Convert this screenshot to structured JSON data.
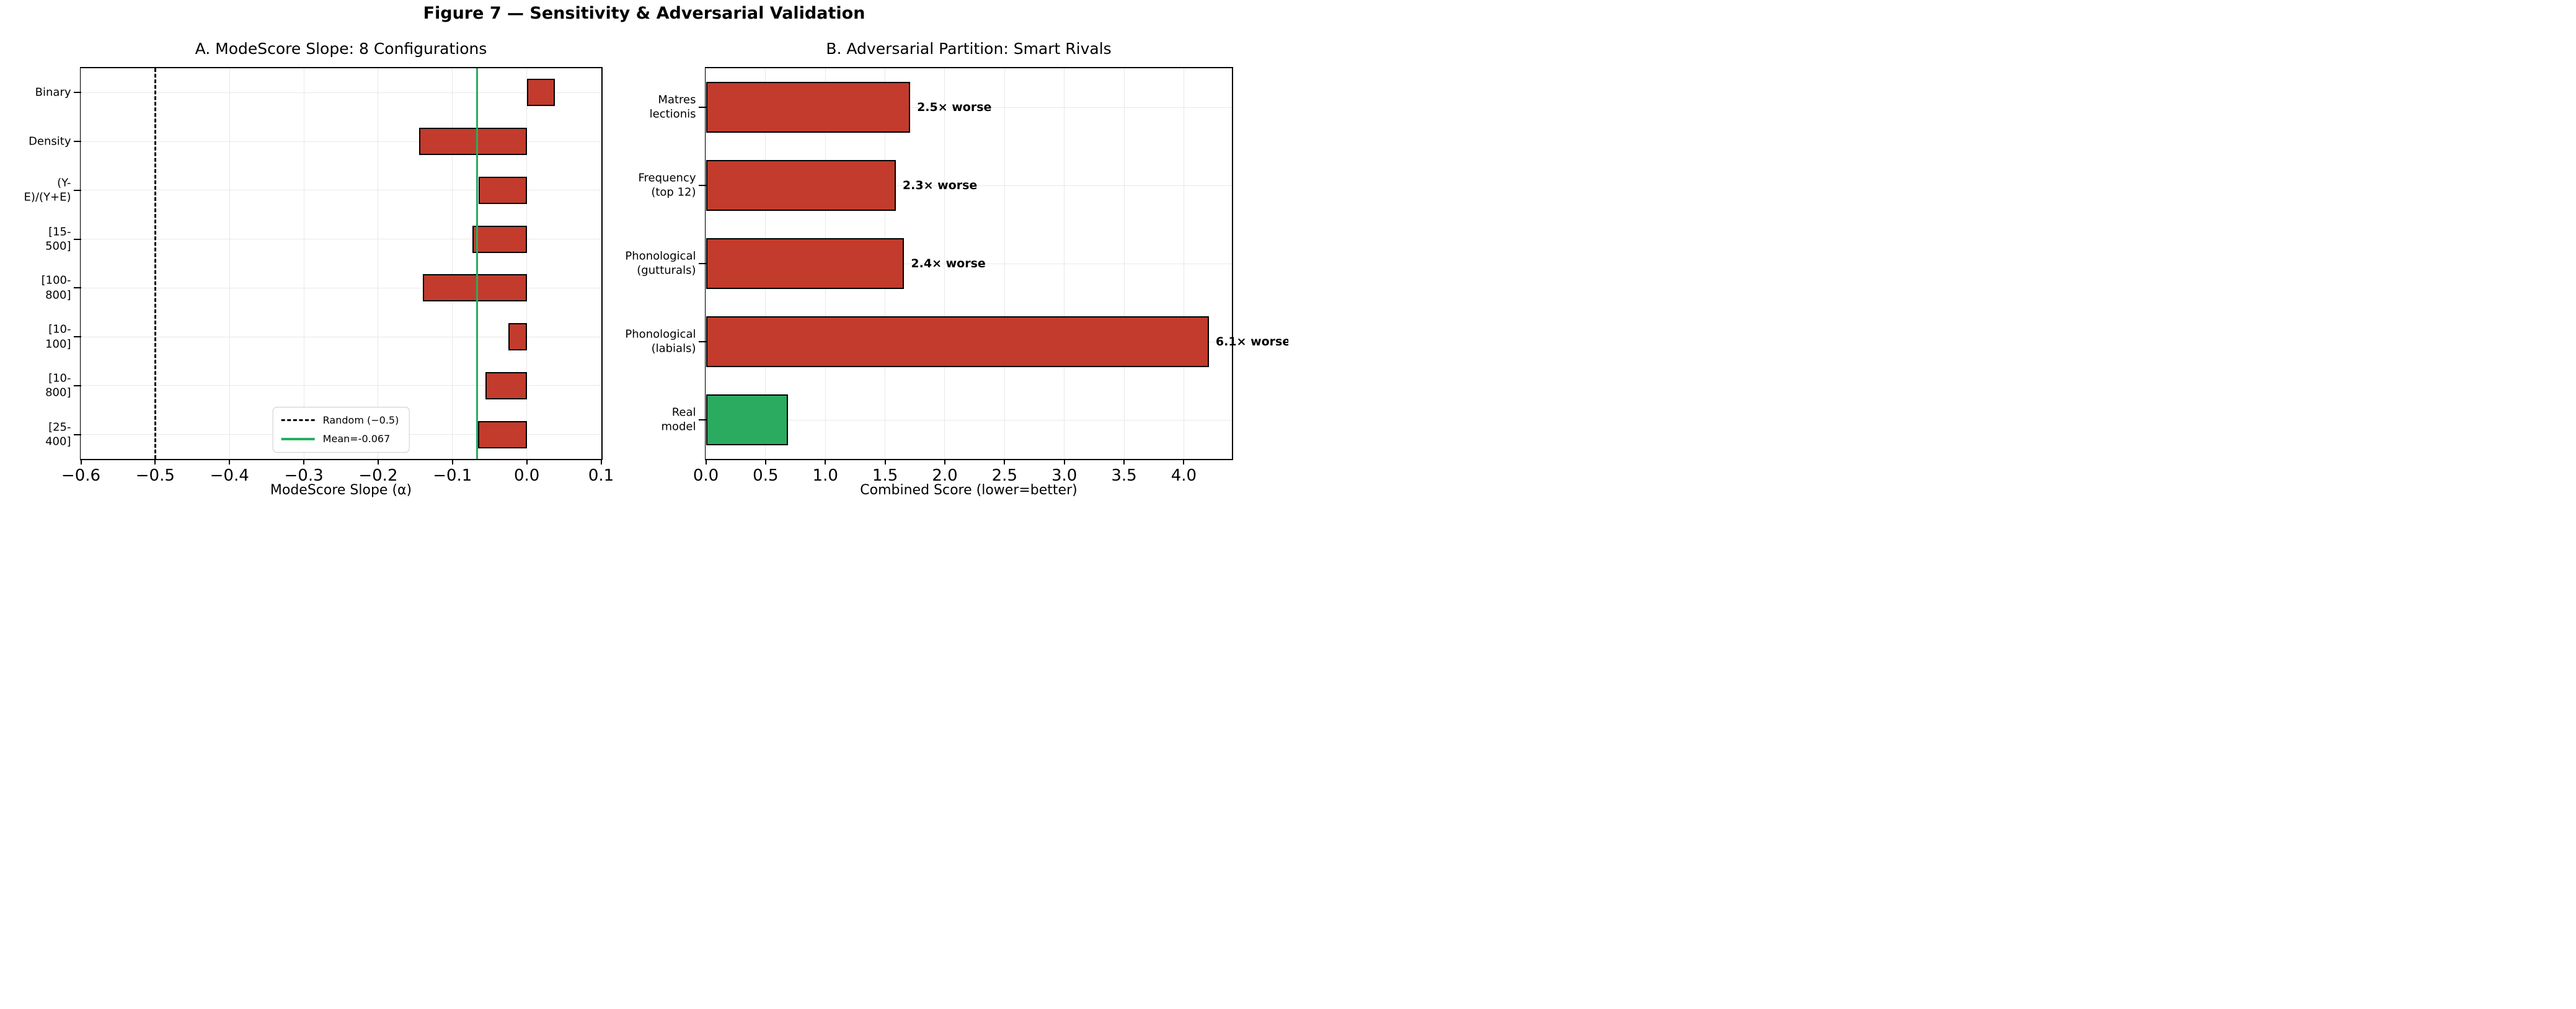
{
  "figure_title": "Figure 7 — Sensitivity & Adversarial Validation",
  "colors": {
    "bar_red": "#c23b2c",
    "bar_green": "#2aab60",
    "mean_line_green": "#27ae60",
    "random_line_black": "#000000",
    "grid": "#e8e8e8",
    "spine": "#000000"
  },
  "chart_data": [
    {
      "type": "bar",
      "orientation": "horizontal",
      "title": "A. ModeScore Slope: 8 Configurations",
      "xlabel": "ModeScore Slope (α)",
      "categories": [
        "Binary",
        "Density",
        "(Y-E)/(Y+E)",
        "[15-500]",
        "[100-800]",
        "[10-100]",
        "[10-800]",
        "[25-400]"
      ],
      "values": [
        0.038,
        -0.145,
        -0.065,
        -0.073,
        -0.14,
        -0.025,
        -0.056,
        -0.066
      ],
      "bar_color": "#c23b2c",
      "xlim": [
        -0.6,
        0.1
      ],
      "xticks": [
        -0.6,
        -0.5,
        -0.4,
        -0.3,
        -0.2,
        -0.1,
        0.0,
        0.1
      ],
      "xtick_labels": [
        "−0.6",
        "−0.5",
        "−0.4",
        "−0.3",
        "−0.2",
        "−0.1",
        "0.0",
        "0.1"
      ],
      "grid": true,
      "legend_position": "lower center",
      "reference_lines": [
        {
          "label": "Random (−0.5)",
          "x": -0.5,
          "style": "dashed",
          "color": "#000000"
        },
        {
          "label": "Mean=-0.067",
          "x": -0.067,
          "style": "solid",
          "color": "#27ae60"
        }
      ]
    },
    {
      "type": "bar",
      "orientation": "horizontal",
      "title": "B. Adversarial Partition: Smart Rivals",
      "xlabel": "Combined Score (lower=better)",
      "categories": [
        "Matres\nlectionis",
        "Frequency\n(top 12)",
        "Phonological\n(gutturals)",
        "Phonological\n(labials)",
        "Real model"
      ],
      "values": [
        1.71,
        1.59,
        1.66,
        4.21,
        0.69
      ],
      "bar_colors": [
        "#c23b2c",
        "#c23b2c",
        "#c23b2c",
        "#c23b2c",
        "#2aab60"
      ],
      "annotations": [
        "2.5× worse",
        "2.3× worse",
        "2.4× worse",
        "6.1× worse",
        ""
      ],
      "xlim": [
        0,
        4.4
      ],
      "xticks": [
        0.0,
        0.5,
        1.0,
        1.5,
        2.0,
        2.5,
        3.0,
        3.5,
        4.0
      ],
      "xtick_labels": [
        "0.0",
        "0.5",
        "1.0",
        "1.5",
        "2.0",
        "2.5",
        "3.0",
        "3.5",
        "4.0"
      ],
      "grid": true
    }
  ]
}
